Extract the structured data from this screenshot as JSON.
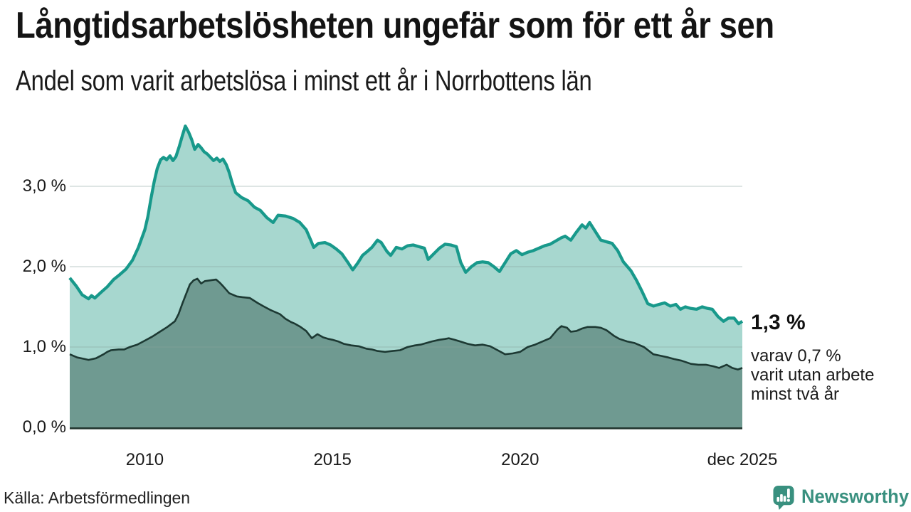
{
  "header": {
    "title": "Långtidsarbetslösheten ungefär som för ett år sen",
    "subtitle": "Andel som varit arbetslösa i minst ett år i Norrbottens län"
  },
  "annotation": {
    "value": "1,3 %",
    "detail_lines": [
      "varav 0,7 %",
      "varit utan arbete",
      "minst två år"
    ]
  },
  "footer": {
    "source": "Källa: Arbetsförmedlingen",
    "brand_name": "Newsworthy",
    "brand_icon": "bar-chart-speech-bubble-icon"
  },
  "colors": {
    "one_year_line": "#18998b",
    "one_year_fill": "#a7d7cf",
    "two_year_line": "#1d3933",
    "two_year_fill": "#6f9a91",
    "axis_line": "#22352f",
    "gridline": "#8aa39e",
    "text_dark": "#161616",
    "brand_teal": "#39907f"
  },
  "chart_data": {
    "type": "area",
    "unit": "%",
    "x_range": [
      2008,
      2025.92
    ],
    "y_range": [
      0,
      3.9
    ],
    "grid": "horizontal",
    "legend": "none",
    "x_ticks": [
      {
        "year": 2010,
        "label": "2010"
      },
      {
        "year": 2015,
        "label": "2015"
      },
      {
        "year": 2020,
        "label": "2020"
      },
      {
        "year": 2025.92,
        "label": "dec 2025"
      }
    ],
    "y_ticks": [
      {
        "value": 0,
        "label": "0,0 %"
      },
      {
        "value": 1,
        "label": "1,0 %"
      },
      {
        "value": 2,
        "label": "2,0 %"
      },
      {
        "value": 3,
        "label": "3,0 %"
      }
    ],
    "series": [
      {
        "id": "arbetslosa_minst_ett_ar",
        "final_value_label": "1,3 %",
        "points": [
          [
            2008.0,
            1.86
          ],
          [
            2008.17,
            1.76
          ],
          [
            2008.33,
            1.65
          ],
          [
            2008.5,
            1.6
          ],
          [
            2008.58,
            1.64
          ],
          [
            2008.67,
            1.61
          ],
          [
            2008.83,
            1.68
          ],
          [
            2009.0,
            1.75
          ],
          [
            2009.17,
            1.84
          ],
          [
            2009.33,
            1.9
          ],
          [
            2009.5,
            1.97
          ],
          [
            2009.67,
            2.08
          ],
          [
            2009.83,
            2.24
          ],
          [
            2010.0,
            2.46
          ],
          [
            2010.08,
            2.62
          ],
          [
            2010.17,
            2.86
          ],
          [
            2010.25,
            3.06
          ],
          [
            2010.33,
            3.22
          ],
          [
            2010.42,
            3.33
          ],
          [
            2010.5,
            3.36
          ],
          [
            2010.58,
            3.33
          ],
          [
            2010.67,
            3.38
          ],
          [
            2010.75,
            3.32
          ],
          [
            2010.83,
            3.37
          ],
          [
            2010.92,
            3.5
          ],
          [
            2011.0,
            3.63
          ],
          [
            2011.08,
            3.75
          ],
          [
            2011.17,
            3.67
          ],
          [
            2011.25,
            3.58
          ],
          [
            2011.33,
            3.46
          ],
          [
            2011.42,
            3.52
          ],
          [
            2011.5,
            3.48
          ],
          [
            2011.58,
            3.43
          ],
          [
            2011.67,
            3.4
          ],
          [
            2011.75,
            3.36
          ],
          [
            2011.83,
            3.32
          ],
          [
            2011.92,
            3.35
          ],
          [
            2012.0,
            3.31
          ],
          [
            2012.08,
            3.34
          ],
          [
            2012.17,
            3.27
          ],
          [
            2012.25,
            3.17
          ],
          [
            2012.33,
            3.04
          ],
          [
            2012.42,
            2.92
          ],
          [
            2012.58,
            2.86
          ],
          [
            2012.75,
            2.82
          ],
          [
            2012.92,
            2.74
          ],
          [
            2013.08,
            2.7
          ],
          [
            2013.25,
            2.61
          ],
          [
            2013.42,
            2.55
          ],
          [
            2013.55,
            2.64
          ],
          [
            2013.75,
            2.63
          ],
          [
            2013.95,
            2.6
          ],
          [
            2014.13,
            2.55
          ],
          [
            2014.3,
            2.46
          ],
          [
            2014.42,
            2.33
          ],
          [
            2014.5,
            2.24
          ],
          [
            2014.63,
            2.29
          ],
          [
            2014.8,
            2.3
          ],
          [
            2014.95,
            2.27
          ],
          [
            2015.1,
            2.22
          ],
          [
            2015.25,
            2.16
          ],
          [
            2015.4,
            2.06
          ],
          [
            2015.54,
            1.96
          ],
          [
            2015.68,
            2.05
          ],
          [
            2015.8,
            2.14
          ],
          [
            2015.93,
            2.19
          ],
          [
            2016.05,
            2.24
          ],
          [
            2016.2,
            2.33
          ],
          [
            2016.3,
            2.3
          ],
          [
            2016.45,
            2.19
          ],
          [
            2016.55,
            2.14
          ],
          [
            2016.7,
            2.24
          ],
          [
            2016.85,
            2.22
          ],
          [
            2017.0,
            2.26
          ],
          [
            2017.15,
            2.27
          ],
          [
            2017.3,
            2.25
          ],
          [
            2017.45,
            2.23
          ],
          [
            2017.55,
            2.09
          ],
          [
            2017.7,
            2.16
          ],
          [
            2017.85,
            2.23
          ],
          [
            2018.0,
            2.28
          ],
          [
            2018.15,
            2.27
          ],
          [
            2018.3,
            2.25
          ],
          [
            2018.42,
            2.05
          ],
          [
            2018.55,
            1.93
          ],
          [
            2018.7,
            2.0
          ],
          [
            2018.85,
            2.05
          ],
          [
            2019.0,
            2.06
          ],
          [
            2019.15,
            2.05
          ],
          [
            2019.3,
            2.0
          ],
          [
            2019.45,
            1.94
          ],
          [
            2019.6,
            2.05
          ],
          [
            2019.75,
            2.16
          ],
          [
            2019.9,
            2.2
          ],
          [
            2020.05,
            2.15
          ],
          [
            2020.2,
            2.18
          ],
          [
            2020.35,
            2.2
          ],
          [
            2020.5,
            2.23
          ],
          [
            2020.65,
            2.26
          ],
          [
            2020.8,
            2.28
          ],
          [
            2020.95,
            2.32
          ],
          [
            2021.1,
            2.36
          ],
          [
            2021.2,
            2.38
          ],
          [
            2021.35,
            2.33
          ],
          [
            2021.5,
            2.43
          ],
          [
            2021.65,
            2.52
          ],
          [
            2021.75,
            2.48
          ],
          [
            2021.85,
            2.55
          ],
          [
            2022.0,
            2.44
          ],
          [
            2022.15,
            2.33
          ],
          [
            2022.3,
            2.31
          ],
          [
            2022.45,
            2.29
          ],
          [
            2022.6,
            2.2
          ],
          [
            2022.75,
            2.06
          ],
          [
            2022.95,
            1.95
          ],
          [
            2023.1,
            1.83
          ],
          [
            2023.25,
            1.69
          ],
          [
            2023.4,
            1.54
          ],
          [
            2023.55,
            1.51
          ],
          [
            2023.7,
            1.53
          ],
          [
            2023.85,
            1.55
          ],
          [
            2024.0,
            1.51
          ],
          [
            2024.15,
            1.53
          ],
          [
            2024.27,
            1.47
          ],
          [
            2024.4,
            1.5
          ],
          [
            2024.55,
            1.48
          ],
          [
            2024.7,
            1.47
          ],
          [
            2024.85,
            1.5
          ],
          [
            2025.0,
            1.48
          ],
          [
            2025.12,
            1.47
          ],
          [
            2025.27,
            1.38
          ],
          [
            2025.42,
            1.32
          ],
          [
            2025.55,
            1.36
          ],
          [
            2025.7,
            1.36
          ],
          [
            2025.82,
            1.29
          ],
          [
            2025.92,
            1.32
          ]
        ]
      },
      {
        "id": "utan_arbete_minst_tva_ar",
        "final_value_label": "0,7 %",
        "points": [
          [
            2008.0,
            0.91
          ],
          [
            2008.2,
            0.87
          ],
          [
            2008.4,
            0.85
          ],
          [
            2008.5,
            0.84
          ],
          [
            2008.7,
            0.86
          ],
          [
            2008.9,
            0.91
          ],
          [
            2009.0,
            0.94
          ],
          [
            2009.1,
            0.96
          ],
          [
            2009.3,
            0.97
          ],
          [
            2009.45,
            0.97
          ],
          [
            2009.6,
            1.0
          ],
          [
            2009.8,
            1.03
          ],
          [
            2010.0,
            1.08
          ],
          [
            2010.2,
            1.13
          ],
          [
            2010.4,
            1.19
          ],
          [
            2010.6,
            1.25
          ],
          [
            2010.8,
            1.32
          ],
          [
            2010.9,
            1.41
          ],
          [
            2011.0,
            1.54
          ],
          [
            2011.1,
            1.66
          ],
          [
            2011.2,
            1.78
          ],
          [
            2011.3,
            1.83
          ],
          [
            2011.4,
            1.85
          ],
          [
            2011.5,
            1.79
          ],
          [
            2011.6,
            1.82
          ],
          [
            2011.75,
            1.83
          ],
          [
            2011.9,
            1.84
          ],
          [
            2012.0,
            1.8
          ],
          [
            2012.1,
            1.75
          ],
          [
            2012.25,
            1.67
          ],
          [
            2012.45,
            1.63
          ],
          [
            2012.6,
            1.62
          ],
          [
            2012.8,
            1.61
          ],
          [
            2013.0,
            1.55
          ],
          [
            2013.15,
            1.51
          ],
          [
            2013.35,
            1.46
          ],
          [
            2013.5,
            1.43
          ],
          [
            2013.6,
            1.41
          ],
          [
            2013.75,
            1.35
          ],
          [
            2013.9,
            1.31
          ],
          [
            2014.0,
            1.29
          ],
          [
            2014.15,
            1.25
          ],
          [
            2014.3,
            1.2
          ],
          [
            2014.45,
            1.11
          ],
          [
            2014.6,
            1.16
          ],
          [
            2014.75,
            1.12
          ],
          [
            2014.9,
            1.1
          ],
          [
            2015.0,
            1.09
          ],
          [
            2015.15,
            1.07
          ],
          [
            2015.3,
            1.04
          ],
          [
            2015.5,
            1.02
          ],
          [
            2015.7,
            1.01
          ],
          [
            2015.9,
            0.98
          ],
          [
            2016.05,
            0.97
          ],
          [
            2016.2,
            0.95
          ],
          [
            2016.4,
            0.94
          ],
          [
            2016.6,
            0.95
          ],
          [
            2016.8,
            0.96
          ],
          [
            2017.0,
            1.0
          ],
          [
            2017.2,
            1.02
          ],
          [
            2017.35,
            1.03
          ],
          [
            2017.5,
            1.05
          ],
          [
            2017.65,
            1.07
          ],
          [
            2017.85,
            1.09
          ],
          [
            2018.0,
            1.1
          ],
          [
            2018.1,
            1.11
          ],
          [
            2018.25,
            1.09
          ],
          [
            2018.4,
            1.07
          ],
          [
            2018.6,
            1.04
          ],
          [
            2018.8,
            1.02
          ],
          [
            2019.0,
            1.03
          ],
          [
            2019.2,
            1.01
          ],
          [
            2019.4,
            0.96
          ],
          [
            2019.6,
            0.91
          ],
          [
            2019.8,
            0.92
          ],
          [
            2020.0,
            0.94
          ],
          [
            2020.2,
            1.0
          ],
          [
            2020.4,
            1.03
          ],
          [
            2020.6,
            1.07
          ],
          [
            2020.8,
            1.11
          ],
          [
            2021.0,
            1.22
          ],
          [
            2021.1,
            1.26
          ],
          [
            2021.25,
            1.24
          ],
          [
            2021.35,
            1.19
          ],
          [
            2021.5,
            1.2
          ],
          [
            2021.65,
            1.23
          ],
          [
            2021.8,
            1.25
          ],
          [
            2022.0,
            1.25
          ],
          [
            2022.15,
            1.24
          ],
          [
            2022.3,
            1.21
          ],
          [
            2022.5,
            1.14
          ],
          [
            2022.65,
            1.1
          ],
          [
            2022.85,
            1.07
          ],
          [
            2023.05,
            1.05
          ],
          [
            2023.3,
            1.0
          ],
          [
            2023.55,
            0.91
          ],
          [
            2023.75,
            0.89
          ],
          [
            2023.95,
            0.87
          ],
          [
            2024.1,
            0.85
          ],
          [
            2024.3,
            0.83
          ],
          [
            2024.55,
            0.79
          ],
          [
            2024.75,
            0.78
          ],
          [
            2024.95,
            0.78
          ],
          [
            2025.15,
            0.76
          ],
          [
            2025.3,
            0.74
          ],
          [
            2025.5,
            0.78
          ],
          [
            2025.65,
            0.74
          ],
          [
            2025.8,
            0.72
          ],
          [
            2025.92,
            0.74
          ]
        ]
      }
    ]
  }
}
